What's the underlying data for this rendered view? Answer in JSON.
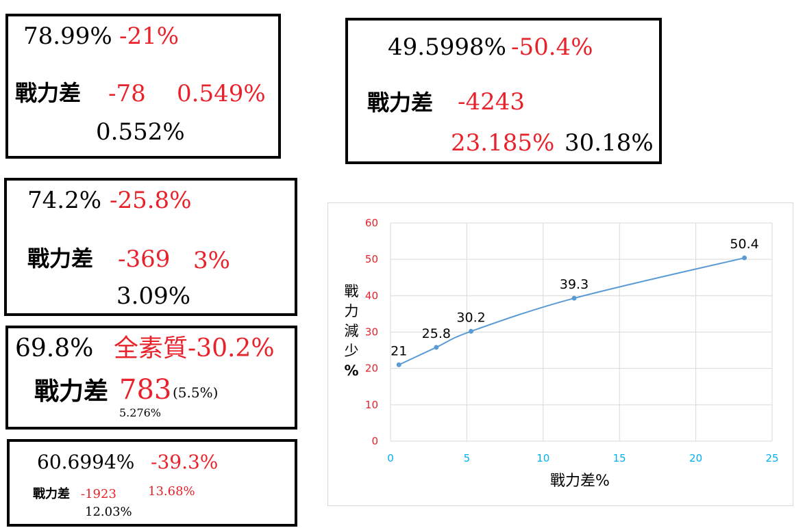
{
  "box1": {
    "pct": "78.99%",
    "drop": "-21%",
    "label": "戰力差",
    "diff": "-78",
    "ratio": "0.549%",
    "ratio2": "0.552%"
  },
  "box2": {
    "pct": "49.5998%",
    "drop": "-50.4%",
    "label": "戰力差",
    "diff": "-4243",
    "ratio": "23.185%",
    "ratio2": "30.18%"
  },
  "box3": {
    "pct": "74.2%",
    "drop": "-25.8%",
    "label": "戰力差",
    "diff": "-369",
    "ratio": "3%",
    "ratio2": "3.09%"
  },
  "box4": {
    "pct": "69.8%",
    "drop": "全素質-30.2%",
    "label": "戰力差",
    "diff": "783",
    "note": "(5.5%)",
    "ratio2": "5.276%"
  },
  "box5": {
    "pct": "60.6994%",
    "drop": "-39.3%",
    "label": "戰力差",
    "diff": "-1923",
    "ratio": "13.68%",
    "ratio2": "12.03%"
  },
  "chart_data": {
    "type": "line",
    "xlabel": "戰力差%",
    "ylabel_chars": [
      "戰",
      "力",
      "減",
      "少",
      "%"
    ],
    "xlim": [
      0,
      25
    ],
    "ylim": [
      0,
      60
    ],
    "x_ticks": [
      "0",
      "5",
      "10",
      "15",
      "20",
      "25"
    ],
    "y_ticks": [
      "0",
      "10",
      "20",
      "30",
      "40",
      "50",
      "60"
    ],
    "grid": true,
    "smooth": true,
    "series": [
      {
        "x": [
          0.549,
          3,
          5.276,
          12.03,
          23.185
        ],
        "y": [
          21,
          25.8,
          30.2,
          39.3,
          50.4
        ],
        "labels": [
          "21",
          "25.8",
          "30.2",
          "39.3",
          "50.4"
        ]
      }
    ],
    "colors": {
      "line": "#5b9bd5",
      "x_tick": "#00b0f0",
      "y_tick": "#e8222a",
      "grid": "#d9d9d9"
    }
  }
}
